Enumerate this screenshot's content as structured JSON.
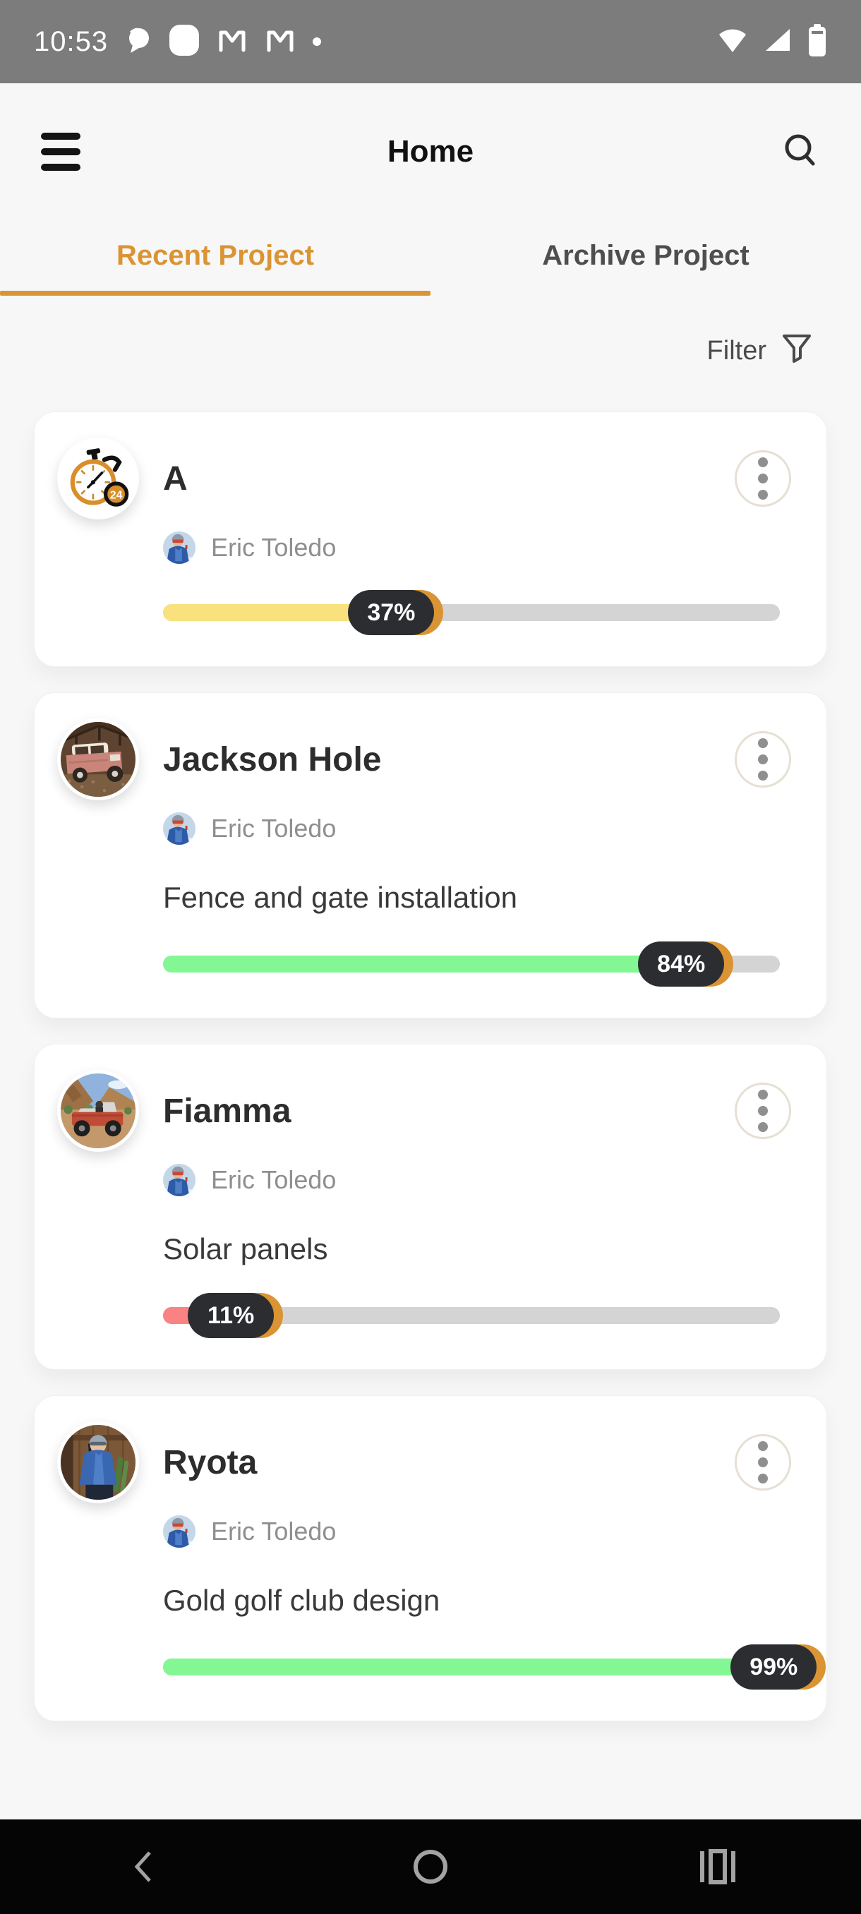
{
  "status_bar": {
    "time": "10:53",
    "notification_icons": [
      "chat-bubble",
      "screenshot-squircle",
      "gmail",
      "gmail",
      "overflow-dot"
    ],
    "system_icons": [
      "wifi",
      "cellular-signal",
      "battery"
    ]
  },
  "header": {
    "title": "Home",
    "left_icon": "hamburger-menu",
    "right_icon": "search"
  },
  "tabs": {
    "active": "Recent Project",
    "inactive": "Archive Project"
  },
  "filter": {
    "label": "Filter",
    "icon": "funnel"
  },
  "cards": [
    {
      "title": "A",
      "avatar": "stopwatch-24-logo",
      "owner": "Eric Toledo",
      "description": "",
      "progress": {
        "percent": 37,
        "label": "37%",
        "color": "#F9E27E"
      }
    },
    {
      "title": "Jackson Hole",
      "avatar": "vintage-pink-truck-photo",
      "owner": "Eric Toledo",
      "description": "Fence and gate installation",
      "progress": {
        "percent": 84,
        "label": "84%",
        "color": "#83F793"
      }
    },
    {
      "title": "Fiamma",
      "avatar": "red-jeep-desert-photo",
      "owner": "Eric Toledo",
      "description": "Solar panels",
      "progress": {
        "percent": 11,
        "label": "11%",
        "color": "#F98383"
      }
    },
    {
      "title": "Ryota",
      "avatar": "skier-in-cabin-photo",
      "owner": "Eric Toledo",
      "description": "Gold golf club design",
      "progress": {
        "percent": 99,
        "label": "99%",
        "color": "#83F793"
      }
    }
  ],
  "colors": {
    "accent": "#DB9434",
    "badge_bg": "#2B2D31",
    "track": "#D4D4D4",
    "status_bar_bg": "#7C7C7C",
    "nav_bar_bg": "#050505"
  },
  "nav_bar": {
    "buttons": [
      "back",
      "home",
      "recents"
    ]
  }
}
